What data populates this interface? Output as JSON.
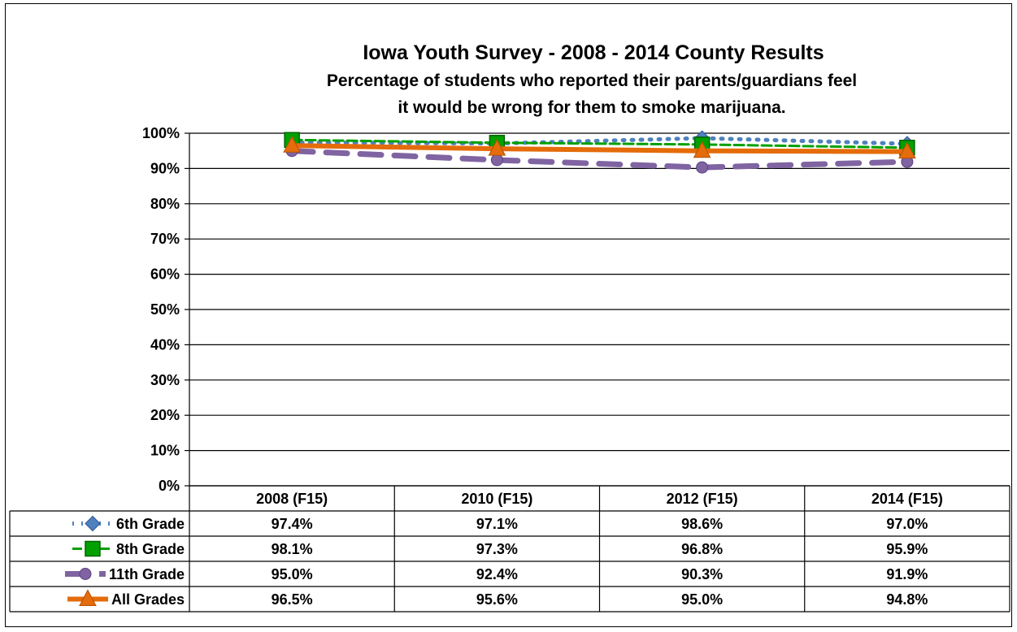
{
  "chart_data": {
    "type": "line",
    "title": "Iowa Youth Survey - 2008 - 2014 County Results",
    "subtitle_line1": "Percentage of students who reported their parents/guardians feel",
    "subtitle_line2": "it would be wrong for them to smoke marijuana.",
    "categories": [
      "2008 (F15)",
      "2010 (F15)",
      "2012 (F15)",
      "2014 (F15)"
    ],
    "ylim": [
      0,
      100
    ],
    "ytick_labels": [
      "0%",
      "10%",
      "20%",
      "30%",
      "40%",
      "50%",
      "60%",
      "70%",
      "80%",
      "90%",
      "100%"
    ],
    "grid": true,
    "legend": "data-table",
    "series": [
      {
        "name": "6th Grade",
        "values": [
          97.4,
          97.1,
          98.6,
          97.0
        ],
        "labels": [
          "97.4%",
          "97.1%",
          "98.6%",
          "97.0%"
        ],
        "color": "#4f81bd",
        "marker": "diamond",
        "style": "dotted"
      },
      {
        "name": "8th Grade",
        "values": [
          98.1,
          97.3,
          96.8,
          95.9
        ],
        "labels": [
          "98.1%",
          "97.3%",
          "96.8%",
          "95.9%"
        ],
        "color": "#00a000",
        "marker": "square",
        "style": "dashed"
      },
      {
        "name": "11th Grade",
        "values": [
          95.0,
          92.4,
          90.3,
          91.9
        ],
        "labels": [
          "95.0%",
          "92.4%",
          "90.3%",
          "91.9%"
        ],
        "color": "#8064a2",
        "marker": "circle",
        "style": "longdash"
      },
      {
        "name": "All Grades",
        "values": [
          96.5,
          95.6,
          95.0,
          94.8
        ],
        "labels": [
          "96.5%",
          "95.6%",
          "95.0%",
          "94.8%"
        ],
        "color": "#e46c0a",
        "marker": "triangle",
        "style": "solid"
      }
    ]
  }
}
